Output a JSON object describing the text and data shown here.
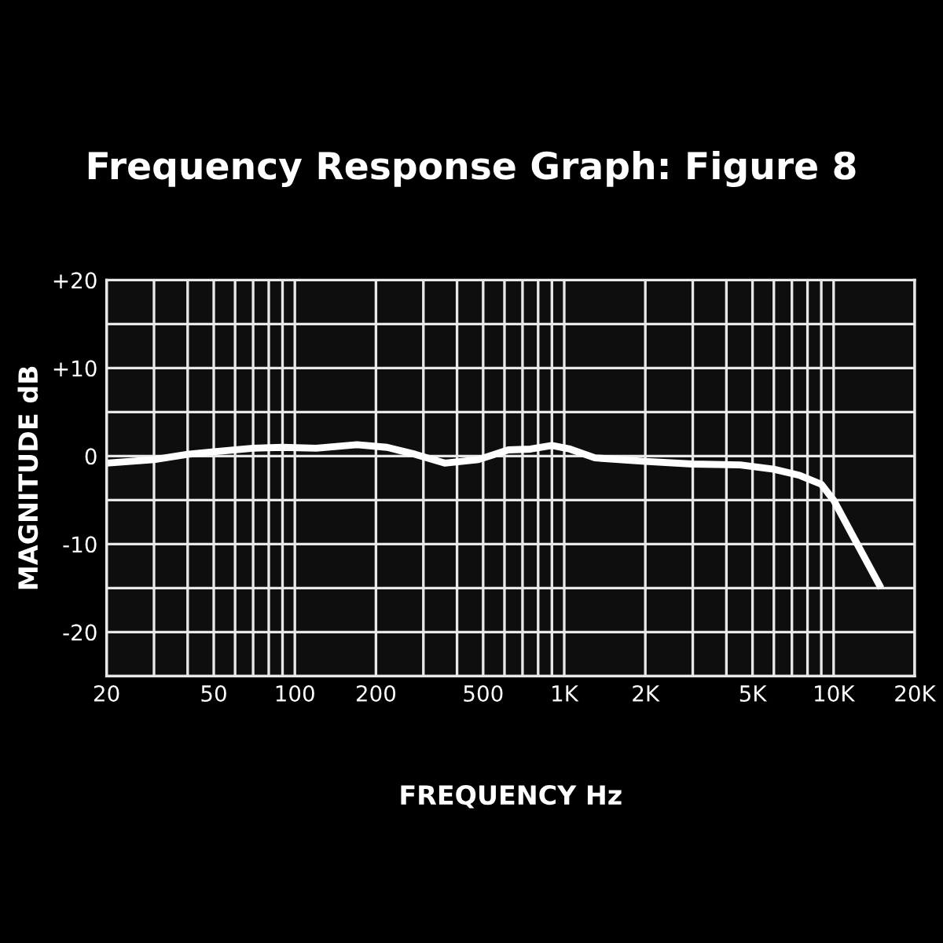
{
  "chart_data": {
    "type": "line",
    "title": "Frequency Response Graph: Figure 8",
    "xlabel": "FREQUENCY Hz",
    "ylabel": "MAGNITUDE dB",
    "x": [
      20,
      30,
      40,
      50,
      70,
      90,
      120,
      170,
      220,
      280,
      360,
      480,
      620,
      750,
      900,
      1050,
      1300,
      2000,
      3000,
      4500,
      6000,
      7500,
      9000,
      10000,
      12000,
      15000
    ],
    "series": [
      {
        "color": "#ffffff",
        "values": [
          -0.8,
          -0.4,
          0.2,
          0.5,
          0.9,
          1.0,
          0.9,
          1.3,
          1.0,
          0.2,
          -0.8,
          -0.4,
          0.7,
          0.8,
          1.2,
          0.8,
          -0.2,
          -0.6,
          -0.9,
          -1.0,
          -1.5,
          -2.2,
          -3.2,
          -5,
          -9.5,
          -15
        ]
      }
    ],
    "log": "x",
    "xlim": [
      20,
      20000
    ],
    "ylim": [
      -25,
      20
    ],
    "xticks": [
      20,
      {
        "value": 30,
        "label": null
      },
      {
        "value": 40,
        "label": null
      },
      50,
      {
        "value": 60,
        "label": null
      },
      {
        "value": 70,
        "label": null
      },
      {
        "value": 80,
        "label": null
      },
      {
        "value": 90,
        "label": null
      },
      100,
      200,
      {
        "value": 300,
        "label": null
      },
      {
        "value": 400,
        "label": null
      },
      500,
      {
        "value": 600,
        "label": null
      },
      {
        "value": 700,
        "label": null
      },
      {
        "value": 800,
        "label": null
      },
      {
        "value": 900,
        "label": null
      },
      {
        "value": 1000,
        "label": "1K"
      },
      {
        "value": 2000,
        "label": "2K"
      },
      {
        "value": 3000,
        "label": null
      },
      {
        "value": 4000,
        "label": null
      },
      {
        "value": 5000,
        "label": "5K"
      },
      {
        "value": 6000,
        "label": null
      },
      {
        "value": 7000,
        "label": null
      },
      {
        "value": 8000,
        "label": null
      },
      {
        "value": 9000,
        "label": null
      },
      {
        "value": 10000,
        "label": "10K"
      },
      {
        "value": 20000,
        "label": "20K"
      }
    ],
    "yticks": [
      {
        "value": -25,
        "label": null
      },
      {
        "value": -20,
        "label": "-20"
      },
      {
        "value": -15,
        "label": null
      },
      {
        "value": -10,
        "label": "-10"
      },
      {
        "value": -5,
        "label": null
      },
      0,
      {
        "value": 5,
        "label": null
      },
      {
        "value": 10,
        "label": "+10"
      },
      {
        "value": 15,
        "label": null
      },
      {
        "value": 20,
        "label": "+20"
      }
    ],
    "grid": true,
    "marker": "none",
    "line_style": "solid",
    "legend": false
  }
}
